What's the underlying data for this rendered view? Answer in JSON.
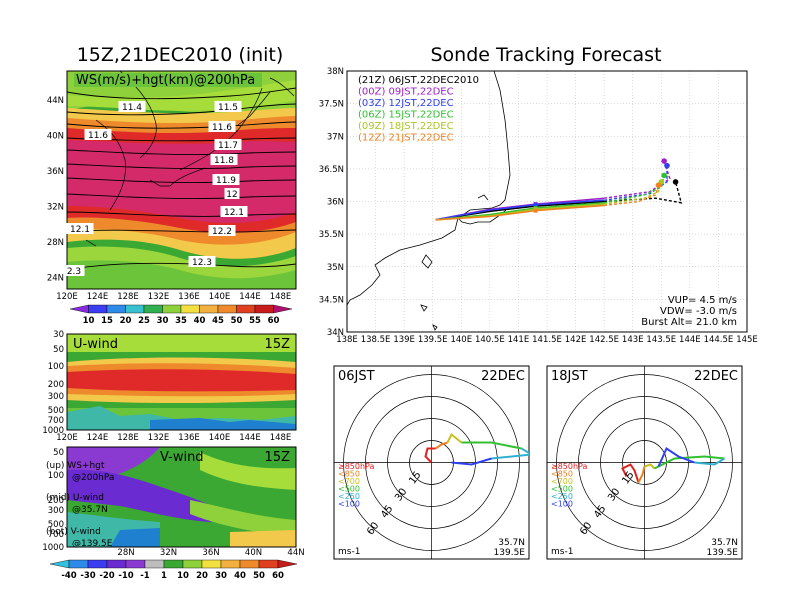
{
  "left": {
    "title": "15Z,21DEC2010 (init)",
    "map": {
      "label": "WS(m/s)+hgt(km)@200hPa",
      "lat_ticks": [
        "44N",
        "40N",
        "36N",
        "32N",
        "28N",
        "24N"
      ],
      "lon_ticks": [
        "120E",
        "124E",
        "128E",
        "132E",
        "136E",
        "140E",
        "144E",
        "148E"
      ],
      "contour_labels": [
        "11.4",
        "11.5",
        "11.5",
        "11.6",
        "11.6",
        "11.7",
        "11.8",
        "11.9",
        "12",
        "12.1",
        "12.1",
        "12.2",
        "12.3",
        "2.3"
      ]
    },
    "ws_colorbar": [
      "10",
      "15",
      "20",
      "25",
      "30",
      "35",
      "40",
      "45",
      "50",
      "55",
      "60"
    ],
    "uwind": {
      "label": "U-wind",
      "time": "15Z",
      "p_ticks": [
        "30",
        "50",
        "100",
        "200",
        "300",
        "500",
        "700",
        "1000"
      ],
      "lon_ticks": [
        "120E",
        "124E",
        "128E",
        "132E",
        "136E",
        "140E",
        "144E",
        "148E"
      ]
    },
    "vwind": {
      "label": "V-wind",
      "time": "15Z",
      "p_ticks": [
        "50",
        "100",
        "200",
        "300",
        "500",
        "700",
        "1000"
      ],
      "lat_ticks": [
        "28N",
        "32N",
        "36N",
        "40N",
        "44N"
      ]
    },
    "wind_colorbar": [
      "-40",
      "-30",
      "-20",
      "-10",
      "-1",
      "1",
      "10",
      "20",
      "30",
      "40",
      "50",
      "60"
    ],
    "legend": [
      {
        "a": "(up) WS+hgt",
        "b": "@200hPa"
      },
      {
        "a": "(mid) U-wind",
        "b": "@35.7N"
      },
      {
        "a": "(bot) V-wind",
        "b": "@139.5E"
      }
    ]
  },
  "right": {
    "title": "Sonde Tracking Forecast",
    "track_map": {
      "lat_ticks": [
        "38N",
        "37.5N",
        "37N",
        "36.5N",
        "36N",
        "35.5N",
        "35N",
        "34.5N",
        "34N"
      ],
      "lon_ticks": [
        "138E",
        "138.5E",
        "139E",
        "139.5E",
        "140E",
        "140.5E",
        "141E",
        "141.5E",
        "142E",
        "142.5E",
        "143E",
        "143.5E",
        "144E",
        "144.5E",
        "145E"
      ],
      "info": [
        "VUP= 4.5 m/s",
        "VDW= -3.0 m/s",
        "Burst Alt= 21.0 km"
      ]
    },
    "hodo1": {
      "label": "06JST",
      "date": "22DEC",
      "loc1": "35.7N",
      "loc2": "139.5E",
      "units": "ms-1"
    },
    "hodo2": {
      "label": "18JST",
      "date": "22DEC",
      "loc1": "35.7N",
      "loc2": "139.5E",
      "units": "ms-1"
    },
    "hodo_ring_labels": [
      "15",
      "30",
      "45",
      "60"
    ],
    "hodo_legend": [
      "≥850hPa",
      "<850",
      "<700",
      "<500",
      "<250",
      "<100"
    ]
  },
  "chart_data": {
    "type": "line",
    "title": "Sonde Tracking Forecast",
    "xlim": [
      138,
      145
    ],
    "ylim": [
      34,
      38
    ],
    "series": [
      {
        "name": "(21Z) 06JST,22DEC2010",
        "color": "#000000",
        "x": [
          139.55,
          140.5,
          141.3,
          142.5,
          143.4,
          143.85,
          143.75
        ],
        "y": [
          35.72,
          35.85,
          35.93,
          36.0,
          36.05,
          35.98,
          36.3
        ]
      },
      {
        "name": "(00Z) 09JST,22DEC",
        "color": "#a020c8",
        "x": [
          139.55,
          140.5,
          141.3,
          142.5,
          143.3,
          143.65,
          143.55
        ],
        "y": [
          35.72,
          35.88,
          35.96,
          36.05,
          36.15,
          36.35,
          36.62
        ]
      },
      {
        "name": "(03Z) 12JST,22DEC",
        "color": "#3040f0",
        "x": [
          139.55,
          140.5,
          141.3,
          142.5,
          143.3,
          143.6,
          143.6
        ],
        "y": [
          35.72,
          35.87,
          35.95,
          36.02,
          36.12,
          36.3,
          36.55
        ]
      },
      {
        "name": "(06Z) 15JST,22DEC",
        "color": "#30c030",
        "x": [
          139.55,
          140.5,
          141.3,
          142.5,
          143.2,
          143.5,
          143.55
        ],
        "y": [
          35.72,
          35.8,
          35.9,
          35.98,
          36.1,
          36.22,
          36.4
        ]
      },
      {
        "name": "(09Z) 18JST,22DEC",
        "color": "#a8c820",
        "x": [
          139.55,
          140.5,
          141.3,
          142.5,
          143.2,
          143.45,
          143.5
        ],
        "y": [
          35.72,
          35.78,
          35.88,
          35.96,
          36.05,
          36.15,
          36.3
        ]
      },
      {
        "name": "(12Z) 21JST,22DEC",
        "color": "#f08020",
        "x": [
          139.55,
          140.5,
          141.3,
          142.5,
          143.1,
          143.4,
          143.45
        ],
        "y": [
          35.72,
          35.77,
          35.86,
          35.94,
          36.0,
          36.1,
          36.25
        ]
      }
    ],
    "annotations": [
      "VUP= 4.5 m/s",
      "VDW= -3.0 m/s",
      "Burst Alt= 21.0 km"
    ]
  }
}
